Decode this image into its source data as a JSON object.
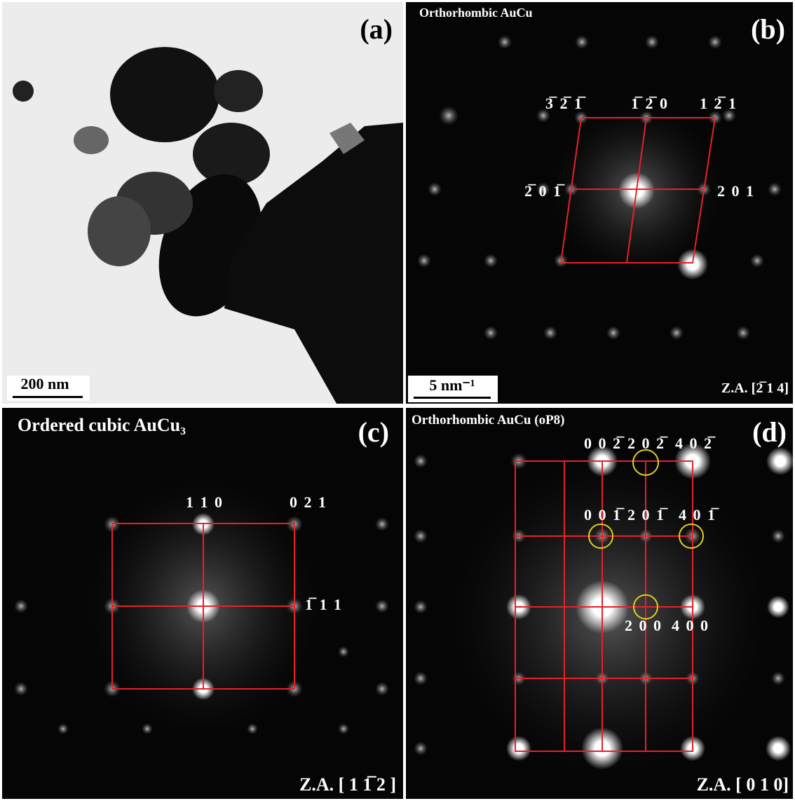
{
  "panels": [
    {
      "label": "(a)",
      "scale_bar": "200 nm"
    },
    {
      "label": "(b)",
      "title": "Orthorhombic AuCu",
      "scale_bar": "5 nm⁻¹",
      "zone_axis": "Z.A. [2̅ 1 4]",
      "spots": [
        "3̅ 2̅ 1̅",
        "1̅ 2̅ 0",
        "1 2̅ 1",
        "2̅ 0 1̅",
        "2 0 1"
      ]
    },
    {
      "label": "(c)",
      "title": "Ordered cubic AuCu₃",
      "zone_axis": "Z.A. [ 1 1̅ 2 ]",
      "spots": [
        "1 1 0",
        "0 2 1",
        "1̅ 1 1"
      ]
    },
    {
      "label": "(d)",
      "title": "Orthorhombic AuCu (oP8)",
      "zone_axis": "Z.A. [ 0 1 0]",
      "spots": [
        "0 0 2̅",
        "2 0 2̅",
        "4 0 2̅",
        "0 0 1̅",
        "2 0 1̅",
        "4 0 1̅",
        "2 0 0",
        "4 0 0"
      ]
    }
  ]
}
